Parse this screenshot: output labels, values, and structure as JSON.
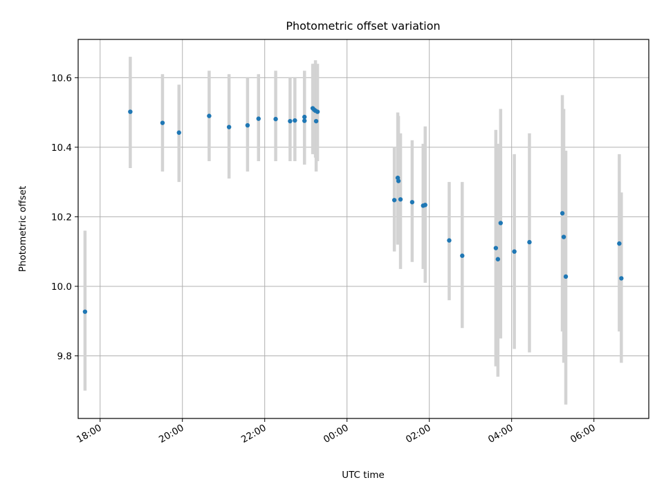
{
  "chart_data": {
    "type": "scatter",
    "title": "Photometric offset variation",
    "xlabel": "UTC time",
    "ylabel": "Photometric offset",
    "x_unit": "UTC time (HH:MM)",
    "xlim": [
      "17:28",
      "07:20"
    ],
    "ylim": [
      9.62,
      10.71
    ],
    "grid": true,
    "legend": "none",
    "x_ticks": [
      "18:00",
      "20:00",
      "22:00",
      "00:00",
      "02:00",
      "04:00",
      "06:00"
    ],
    "y_ticks": [
      "9.8",
      "10.0",
      "10.2",
      "10.4",
      "10.6"
    ],
    "colors": {
      "marker": "#1f77b4",
      "errorbar": "#d3d3d3",
      "grid": "#b0b0b0"
    },
    "points": [
      {
        "x": "17:38",
        "y": 9.927,
        "err_low": 9.7,
        "err_high": 10.16
      },
      {
        "x": "18:44",
        "y": 10.502,
        "err_low": 10.34,
        "err_high": 10.66
      },
      {
        "x": "19:31",
        "y": 10.47,
        "err_low": 10.33,
        "err_high": 10.61
      },
      {
        "x": "19:55",
        "y": 10.442,
        "err_low": 10.3,
        "err_high": 10.58
      },
      {
        "x": "20:39",
        "y": 10.49,
        "err_low": 10.36,
        "err_high": 10.62
      },
      {
        "x": "21:08",
        "y": 10.458,
        "err_low": 10.31,
        "err_high": 10.61
      },
      {
        "x": "21:35",
        "y": 10.463,
        "err_low": 10.33,
        "err_high": 10.6
      },
      {
        "x": "21:51",
        "y": 10.482,
        "err_low": 10.36,
        "err_high": 10.61
      },
      {
        "x": "22:16",
        "y": 10.481,
        "err_low": 10.36,
        "err_high": 10.62
      },
      {
        "x": "22:37",
        "y": 10.475,
        "err_low": 10.36,
        "err_high": 10.6
      },
      {
        "x": "22:44",
        "y": 10.477,
        "err_low": 10.36,
        "err_high": 10.6
      },
      {
        "x": "22:58",
        "y": 10.487,
        "err_low": 10.35,
        "err_high": 10.62
      },
      {
        "x": "22:58",
        "y": 10.476,
        "err_low": 10.35,
        "err_high": 10.61
      },
      {
        "x": "23:10",
        "y": 10.512,
        "err_low": 10.38,
        "err_high": 10.64
      },
      {
        "x": "23:12",
        "y": 10.508,
        "err_low": 10.38,
        "err_high": 10.64
      },
      {
        "x": "23:14",
        "y": 10.505,
        "err_low": 10.37,
        "err_high": 10.65
      },
      {
        "x": "23:15",
        "y": 10.475,
        "err_low": 10.33,
        "err_high": 10.62
      },
      {
        "x": "23:17",
        "y": 10.502,
        "err_low": 10.36,
        "err_high": 10.64
      },
      {
        "x": "01:09",
        "y": 10.248,
        "err_low": 10.1,
        "err_high": 10.4
      },
      {
        "x": "01:14",
        "y": 10.312,
        "err_low": 10.12,
        "err_high": 10.5
      },
      {
        "x": "01:15",
        "y": 10.303,
        "err_low": 10.12,
        "err_high": 10.49
      },
      {
        "x": "01:18",
        "y": 10.25,
        "err_low": 10.05,
        "err_high": 10.44
      },
      {
        "x": "01:35",
        "y": 10.242,
        "err_low": 10.07,
        "err_high": 10.42
      },
      {
        "x": "01:51",
        "y": 10.232,
        "err_low": 10.05,
        "err_high": 10.41
      },
      {
        "x": "01:54",
        "y": 10.234,
        "err_low": 10.01,
        "err_high": 10.46
      },
      {
        "x": "02:29",
        "y": 10.132,
        "err_low": 9.96,
        "err_high": 10.3
      },
      {
        "x": "02:48",
        "y": 10.088,
        "err_low": 9.88,
        "err_high": 10.3
      },
      {
        "x": "03:37",
        "y": 10.11,
        "err_low": 9.77,
        "err_high": 10.45
      },
      {
        "x": "03:40",
        "y": 10.078,
        "err_low": 9.74,
        "err_high": 10.41
      },
      {
        "x": "03:44",
        "y": 10.182,
        "err_low": 9.85,
        "err_high": 10.51
      },
      {
        "x": "04:04",
        "y": 10.1,
        "err_low": 9.82,
        "err_high": 10.38
      },
      {
        "x": "04:26",
        "y": 10.127,
        "err_low": 9.81,
        "err_high": 10.44
      },
      {
        "x": "05:14",
        "y": 10.21,
        "err_low": 9.87,
        "err_high": 10.55
      },
      {
        "x": "05:16",
        "y": 10.142,
        "err_low": 9.78,
        "err_high": 10.51
      },
      {
        "x": "05:19",
        "y": 10.028,
        "err_low": 9.66,
        "err_high": 10.39
      },
      {
        "x": "06:37",
        "y": 10.123,
        "err_low": 9.87,
        "err_high": 10.38
      },
      {
        "x": "06:40",
        "y": 10.023,
        "err_low": 9.78,
        "err_high": 10.27
      }
    ]
  }
}
